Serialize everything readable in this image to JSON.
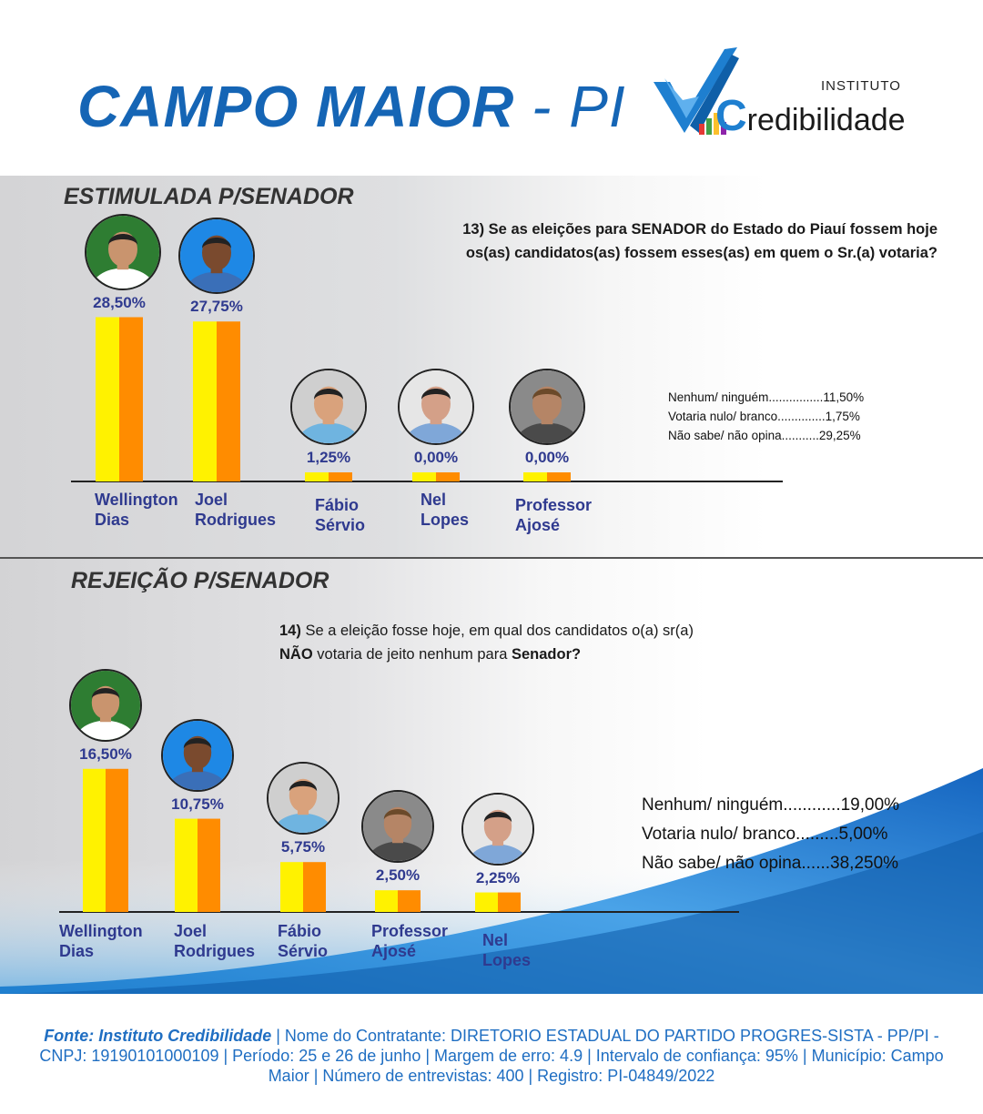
{
  "header": {
    "title_main": "CAMPO MAIOR",
    "title_suffix": "- PI"
  },
  "logo": {
    "top": "INSTITUTO",
    "brand_initial": "C",
    "brand_rest": "redibilidade"
  },
  "colors": {
    "bar_left": "#fff200",
    "bar_right": "#ff8c00",
    "label": "#2f3a8f",
    "accent": "#1565b5"
  },
  "section1": {
    "title": "ESTIMULADA P/SENADOR",
    "question_line1": "13) Se as eleições para SENADOR do Estado do Piauí fossem hoje",
    "question_line2": "os(as) candidatos(as) fossem esses(as) em quem o Sr.(a) votaria?",
    "legend": [
      "Nenhum/ ninguém................11,50%",
      "Votaria nulo/ branco..............1,75%",
      "Não sabe/ não opina...........29,25%"
    ]
  },
  "section2": {
    "title": "REJEIÇÃO P/SENADOR",
    "question_num": "14)",
    "question_line1": "Se a eleição fosse hoje, em qual dos candidatos o(a) sr(a)",
    "question_neg": "NÃO",
    "question_mid": "votaria de jeito nenhum para",
    "question_bold_end": "Senador?",
    "legend": [
      "Nenhum/ ninguém............19,00%",
      "Votaria nulo/ branco.........5,00%",
      "Não sabe/ não opina......38,250%"
    ]
  },
  "chart_data": [
    {
      "type": "bar",
      "title": "ESTIMULADA P/SENADOR",
      "categories": [
        "Wellington Dias",
        "Joel Rodrigues",
        "Fábio Sérvio",
        "Nel Lopes",
        "Professor Ajosé"
      ],
      "name_lines": [
        [
          "Wellington",
          "Dias"
        ],
        [
          "Joel",
          "Rodrigues"
        ],
        [
          "Fábio",
          "Sérvio"
        ],
        [
          "Nel",
          "Lopes"
        ],
        [
          "Professor",
          "Ajosé"
        ]
      ],
      "values": [
        28.5,
        27.75,
        1.25,
        0.0,
        0.0
      ],
      "value_labels": [
        "28,50%",
        "27,75%",
        "1,25%",
        "0,00%",
        "0,00%"
      ],
      "ylim": [
        0,
        30
      ],
      "xlabel": "",
      "ylabel": ""
    },
    {
      "type": "bar",
      "title": "REJEIÇÃO P/SENADOR",
      "categories": [
        "Wellington Dias",
        "Joel Rodrigues",
        "Fábio Sérvio",
        "Professor Ajosé",
        "Nel Lopes"
      ],
      "name_lines": [
        [
          "Wellington",
          "Dias"
        ],
        [
          "Joel",
          "Rodrigues"
        ],
        [
          "Fábio",
          "Sérvio"
        ],
        [
          "Professor",
          "Ajosé"
        ],
        [
          "Nel",
          "Lopes"
        ]
      ],
      "values": [
        16.5,
        10.75,
        5.75,
        2.5,
        2.25
      ],
      "value_labels": [
        "16,50%",
        "10,75%",
        "5,75%",
        "2,50%",
        "2,25%"
      ],
      "ylim": [
        0,
        17
      ],
      "xlabel": "",
      "ylabel": ""
    }
  ],
  "footer": {
    "source_bold": "Fonte: Instituto Credibilidade",
    "text": "| Nome do Contratante: DIRETORIO ESTADUAL DO PARTIDO PROGRES-SISTA - PP/PI - CNPJ: 19190101000109 | Período: 25 e 26 de junho | Margem de erro: 4.9 | Intervalo de confiança: 95% | Município: Campo Maior | Número de entrevistas: 400 | Registro: PI-04849/2022"
  }
}
